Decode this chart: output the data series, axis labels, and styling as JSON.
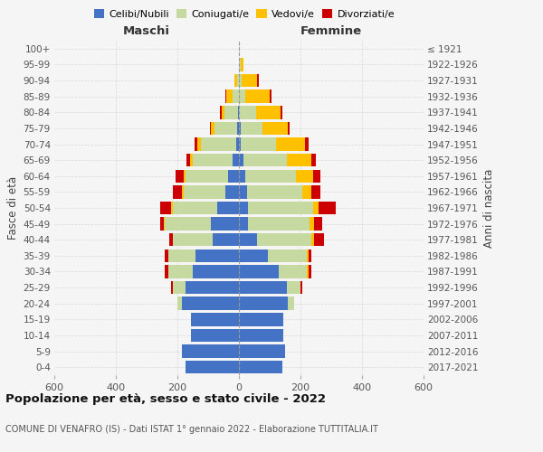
{
  "age_groups": [
    "0-4",
    "5-9",
    "10-14",
    "15-19",
    "20-24",
    "25-29",
    "30-34",
    "35-39",
    "40-44",
    "45-49",
    "50-54",
    "55-59",
    "60-64",
    "65-69",
    "70-74",
    "75-79",
    "80-84",
    "85-89",
    "90-94",
    "95-99",
    "100+"
  ],
  "birth_years": [
    "2017-2021",
    "2012-2016",
    "2007-2011",
    "2002-2006",
    "1997-2001",
    "1992-1996",
    "1987-1991",
    "1982-1986",
    "1977-1981",
    "1972-1976",
    "1967-1971",
    "1962-1966",
    "1957-1961",
    "1952-1956",
    "1947-1951",
    "1942-1946",
    "1937-1941",
    "1932-1936",
    "1927-1931",
    "1922-1926",
    "≤ 1921"
  ],
  "maschi": {
    "celibi": [
      175,
      185,
      155,
      155,
      185,
      175,
      150,
      140,
      85,
      90,
      70,
      45,
      35,
      20,
      10,
      5,
      2,
      0,
      0,
      0,
      0
    ],
    "coniugati": [
      0,
      0,
      0,
      0,
      15,
      40,
      80,
      90,
      130,
      150,
      145,
      135,
      140,
      130,
      115,
      75,
      45,
      20,
      5,
      0,
      0
    ],
    "vedovi": [
      0,
      0,
      0,
      0,
      0,
      0,
      0,
      0,
      0,
      5,
      5,
      5,
      5,
      10,
      10,
      10,
      10,
      20,
      10,
      0,
      0
    ],
    "divorziati": [
      0,
      0,
      0,
      0,
      0,
      5,
      10,
      10,
      10,
      10,
      35,
      30,
      25,
      10,
      10,
      5,
      5,
      5,
      0,
      0,
      0
    ]
  },
  "femmine": {
    "nubili": [
      140,
      150,
      145,
      145,
      160,
      155,
      130,
      95,
      60,
      30,
      30,
      25,
      20,
      15,
      5,
      5,
      0,
      0,
      0,
      0,
      0
    ],
    "coniugate": [
      0,
      0,
      0,
      0,
      20,
      45,
      90,
      125,
      175,
      200,
      210,
      180,
      165,
      140,
      115,
      70,
      55,
      20,
      10,
      5,
      0
    ],
    "vedove": [
      0,
      0,
      0,
      0,
      0,
      0,
      5,
      5,
      10,
      15,
      20,
      30,
      55,
      80,
      95,
      85,
      80,
      80,
      50,
      10,
      0
    ],
    "divorziate": [
      0,
      0,
      0,
      0,
      0,
      5,
      10,
      10,
      30,
      25,
      55,
      30,
      25,
      15,
      10,
      5,
      5,
      5,
      5,
      0,
      0
    ]
  },
  "colors": {
    "celibi": "#4472c4",
    "coniugati": "#c5d9a0",
    "vedovi": "#ffc000",
    "divorziati": "#cc0000"
  },
  "title": "Popolazione per età, sesso e stato civile - 2022",
  "subtitle": "COMUNE DI VENAFRO (IS) - Dati ISTAT 1° gennaio 2022 - Elaborazione TUTTITALIA.IT",
  "ylabel_left": "Fasce di età",
  "ylabel_right": "Anni di nascita",
  "xlabel_left": "Maschi",
  "xlabel_right": "Femmine",
  "xlim": 600,
  "bg_color": "#f5f5f5",
  "grid_color": "#cccccc"
}
